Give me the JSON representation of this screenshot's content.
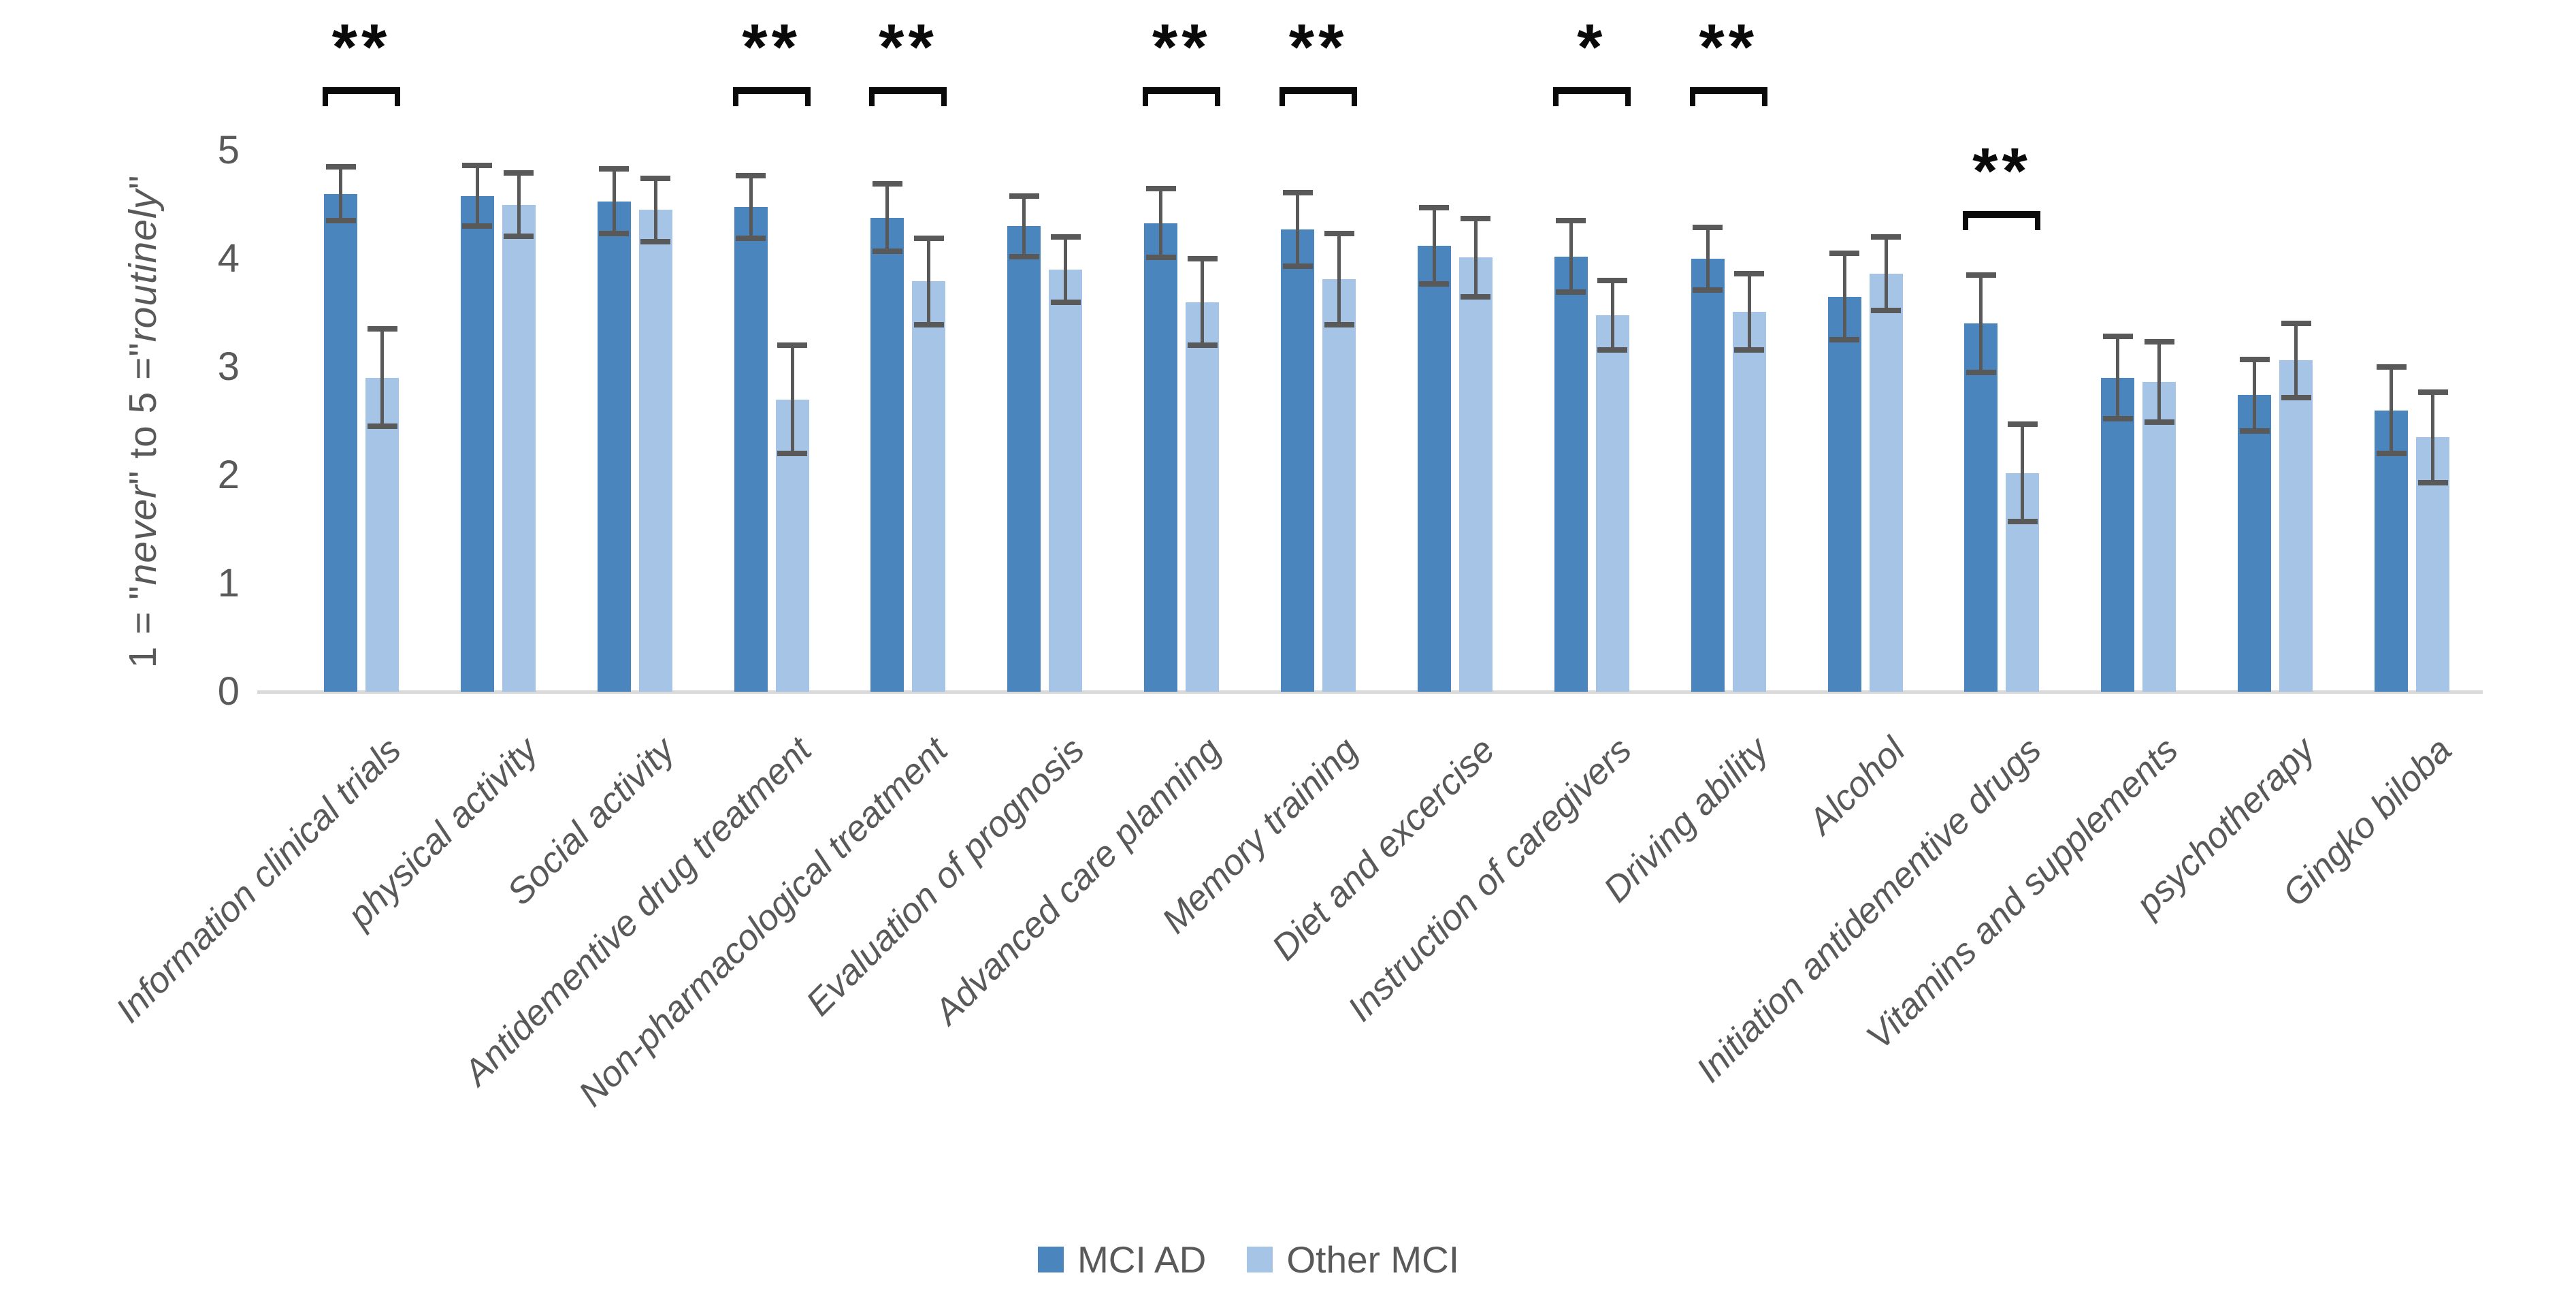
{
  "chart_data": {
    "type": "bar",
    "title": "",
    "xlabel": "",
    "ylabel_plain": "1 = \"never\" to 5 =\"routinely\"",
    "ylabel_parts": {
      "prefix": "1 = \"",
      "italic1": "never",
      "mid": "\" to 5 =\"",
      "italic2": "routinely",
      "suffix": "\""
    },
    "ylim": [
      0,
      5
    ],
    "yticks": [
      "0",
      "1",
      "2",
      "3",
      "4",
      "5"
    ],
    "grid": "off",
    "legend_position": "bottom",
    "categories": [
      "Information clinical trials",
      "physical activity",
      "Social activity",
      "Antidementive drug treatment",
      "Non-pharmacological treatment",
      "Evaluation of prognosis",
      "Advanced care planning",
      "Memory training",
      "Diet and excercise",
      "Instruction of caregivers",
      "Driving ability",
      "Alcohol",
      "Initiation antidementive drugs",
      "Vitamins and supplements",
      "psychotherapy",
      "Gingko biloba"
    ],
    "series": [
      {
        "name": "MCI AD",
        "color": "#4a85bd",
        "values": [
          4.6,
          4.58,
          4.53,
          4.48,
          4.38,
          4.3,
          4.33,
          4.27,
          4.12,
          4.02,
          4.0,
          3.65,
          3.4,
          2.9,
          2.74,
          2.6
        ],
        "errors": [
          0.25,
          0.28,
          0.3,
          0.29,
          0.31,
          0.28,
          0.32,
          0.34,
          0.35,
          0.33,
          0.29,
          0.4,
          0.45,
          0.38,
          0.33,
          0.4
        ]
      },
      {
        "name": "Other MCI",
        "color": "#a6c4e6",
        "values": [
          2.9,
          4.5,
          4.45,
          2.7,
          3.79,
          3.9,
          3.6,
          3.81,
          4.01,
          3.48,
          3.51,
          3.86,
          2.02,
          2.86,
          3.06,
          2.35
        ],
        "errors": [
          0.45,
          0.29,
          0.29,
          0.5,
          0.4,
          0.3,
          0.4,
          0.42,
          0.36,
          0.32,
          0.35,
          0.34,
          0.45,
          0.37,
          0.34,
          0.42
        ]
      }
    ],
    "significance": [
      {
        "category_index": 0,
        "symbol": "**",
        "placement": "high"
      },
      {
        "category_index": 3,
        "symbol": "**",
        "placement": "high"
      },
      {
        "category_index": 4,
        "symbol": "**",
        "placement": "high"
      },
      {
        "category_index": 6,
        "symbol": "**",
        "placement": "high"
      },
      {
        "category_index": 7,
        "symbol": "**",
        "placement": "high"
      },
      {
        "category_index": 9,
        "symbol": "*",
        "placement": "high"
      },
      {
        "category_index": 10,
        "symbol": "**",
        "placement": "high"
      },
      {
        "category_index": 12,
        "symbol": "**",
        "placement": "low"
      }
    ],
    "error_bar_color": "#595959",
    "axis_text_color": "#595959",
    "baseline_color": "#d9d9d9",
    "marker_color": "#0a0a0a"
  }
}
